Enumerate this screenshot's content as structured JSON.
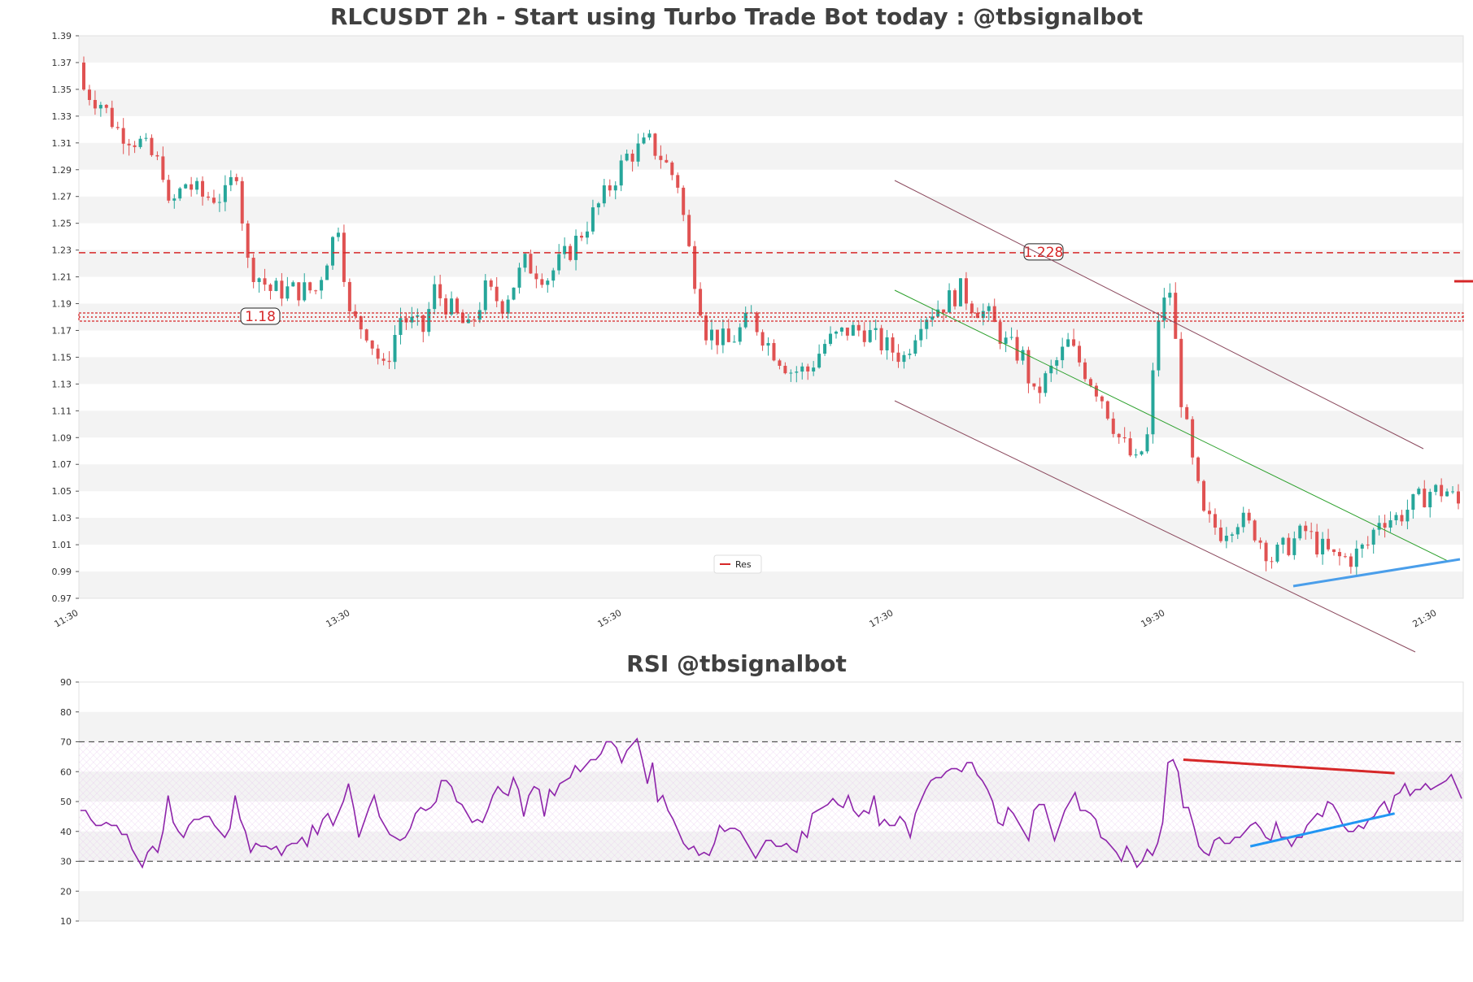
{
  "chart_data": [
    {
      "type": "candlestick",
      "title": "RLCUSDT 2h - Start using Turbo Trade Bot today : @tbsignalbot",
      "ylim": [
        0.97,
        1.39
      ],
      "yticks": [
        "0.97",
        "0.99",
        "1.01",
        "1.03",
        "1.05",
        "1.07",
        "1.09",
        "1.11",
        "1.13",
        "1.15",
        "1.17",
        "1.19",
        "1.21",
        "1.23",
        "1.25",
        "1.27",
        "1.29",
        "1.31",
        "1.33",
        "1.35",
        "1.37",
        "1.39"
      ],
      "xticks": [
        "11:30",
        "13:30",
        "15:30",
        "17:30",
        "19:30",
        "21:30"
      ],
      "legend": [
        "Res"
      ],
      "legend_position": "bottom-center",
      "grid": "horizontal bands",
      "levels": [
        {
          "value": 1.228,
          "label": "1.228",
          "style": "dashed",
          "color": "#d62728"
        },
        {
          "value": 1.18,
          "label": "1.18",
          "style": "hatched band",
          "color": "#d62728"
        }
      ],
      "close_path": [
        [
          0,
          1.35
        ],
        [
          3,
          1.34
        ],
        [
          6,
          1.32
        ],
        [
          10,
          1.31
        ],
        [
          14,
          1.29
        ],
        [
          15,
          1.26
        ],
        [
          18,
          1.28
        ],
        [
          21,
          1.27
        ],
        [
          25,
          1.27
        ],
        [
          27,
          1.29
        ],
        [
          29,
          1.22
        ],
        [
          33,
          1.2
        ],
        [
          37,
          1.2
        ],
        [
          41,
          1.2
        ],
        [
          45,
          1.25
        ],
        [
          47,
          1.18
        ],
        [
          50,
          1.17
        ],
        [
          53,
          1.14
        ],
        [
          56,
          1.18
        ],
        [
          60,
          1.17
        ],
        [
          62,
          1.2
        ],
        [
          64,
          1.19
        ],
        [
          68,
          1.17
        ],
        [
          71,
          1.2
        ],
        [
          74,
          1.19
        ],
        [
          78,
          1.22
        ],
        [
          82,
          1.21
        ],
        [
          86,
          1.23
        ],
        [
          89,
          1.25
        ],
        [
          92,
          1.27
        ],
        [
          96,
          1.3
        ],
        [
          100,
          1.31
        ],
        [
          102,
          1.3
        ],
        [
          105,
          1.28
        ],
        [
          107,
          1.23
        ],
        [
          110,
          1.17
        ],
        [
          114,
          1.16
        ],
        [
          118,
          1.18
        ],
        [
          121,
          1.16
        ],
        [
          125,
          1.14
        ],
        [
          128,
          1.14
        ],
        [
          131,
          1.16
        ],
        [
          135,
          1.17
        ],
        [
          138,
          1.17
        ],
        [
          141,
          1.16
        ],
        [
          145,
          1.15
        ],
        [
          148,
          1.18
        ],
        [
          152,
          1.19
        ],
        [
          155,
          1.2
        ],
        [
          157,
          1.19
        ],
        [
          160,
          1.18
        ],
        [
          163,
          1.16
        ],
        [
          166,
          1.15
        ],
        [
          168,
          1.12
        ],
        [
          171,
          1.14
        ],
        [
          174,
          1.16
        ],
        [
          177,
          1.14
        ],
        [
          180,
          1.12
        ],
        [
          183,
          1.09
        ],
        [
          186,
          1.07
        ],
        [
          188,
          1.09
        ],
        [
          190,
          1.18
        ],
        [
          192,
          1.2
        ],
        [
          194,
          1.12
        ],
        [
          196,
          1.07
        ],
        [
          198,
          1.03
        ],
        [
          201,
          1.02
        ],
        [
          204,
          1.03
        ],
        [
          207,
          1.02
        ],
        [
          210,
          1.0
        ],
        [
          213,
          1.01
        ],
        [
          216,
          1.02
        ],
        [
          218,
          1.01
        ],
        [
          221,
          1.0
        ],
        [
          224,
          1.0
        ],
        [
          227,
          1.01
        ],
        [
          229,
          1.03
        ],
        [
          232,
          1.03
        ],
        [
          235,
          1.04
        ],
        [
          238,
          1.05
        ],
        [
          241,
          1.05
        ],
        [
          243,
          1.04
        ]
      ],
      "candle_count": 244
    },
    {
      "type": "line",
      "title": "RSI @tbsignalbot",
      "ylim": [
        10,
        90
      ],
      "yticks": [
        "10",
        "20",
        "30",
        "40",
        "50",
        "60",
        "70",
        "80",
        "90"
      ],
      "levels": [
        30,
        70
      ],
      "series": [
        {
          "values": [
            47,
            47,
            44,
            42,
            42,
            43,
            42,
            42,
            39,
            39,
            34,
            31,
            28,
            33,
            35,
            33,
            40,
            52,
            43,
            40,
            38,
            42,
            44,
            44,
            45,
            45,
            42,
            40,
            38,
            41,
            52,
            44,
            40,
            33,
            36,
            35,
            35,
            34,
            35,
            32,
            35,
            36,
            36,
            38,
            35,
            42,
            39,
            44,
            46,
            42,
            46,
            50,
            56,
            48,
            38,
            43,
            48,
            52,
            45,
            42,
            39,
            38,
            37,
            38,
            41,
            46,
            48,
            47,
            48,
            50,
            57,
            57,
            55,
            50,
            49,
            46,
            43,
            44,
            43,
            47,
            52,
            55,
            53,
            52,
            58,
            54,
            45,
            52,
            55,
            54,
            45,
            54,
            52,
            56,
            57,
            58,
            62,
            60,
            62,
            64,
            64,
            66,
            70,
            70,
            68,
            63,
            67,
            69,
            71,
            64,
            56,
            63,
            50,
            52,
            47,
            44,
            40,
            36,
            34,
            35,
            32,
            33,
            32,
            36,
            42,
            40,
            41,
            41,
            40,
            37,
            34,
            31,
            34,
            37,
            37,
            35,
            35,
            36,
            34,
            33,
            40,
            38,
            46,
            47,
            48,
            49,
            51,
            49,
            48,
            52,
            47,
            45,
            47,
            46,
            52,
            42,
            44,
            42,
            42,
            45,
            43,
            38,
            46,
            50,
            54,
            57,
            58,
            58,
            60,
            61,
            61,
            60,
            63,
            63,
            59,
            57,
            54,
            50,
            43,
            42,
            48,
            46,
            43,
            40,
            37,
            47,
            49,
            49,
            43,
            37,
            42,
            47,
            50,
            53,
            47,
            47,
            46,
            44,
            38,
            37,
            35,
            33,
            30,
            35,
            32,
            28,
            30,
            34,
            32,
            36,
            43,
            63,
            64,
            60,
            48,
            48,
            42,
            35,
            33,
            32,
            37,
            38,
            36,
            36,
            38,
            38,
            40,
            42,
            43,
            41,
            38,
            37,
            43,
            38,
            38,
            35,
            38,
            38,
            42,
            44,
            46,
            45,
            50,
            49,
            46,
            42,
            40,
            40,
            42,
            41,
            44,
            45,
            48,
            50,
            46,
            52,
            53,
            56,
            52,
            54,
            54,
            56,
            54,
            55,
            56,
            57,
            59,
            55,
            51
          ]
        }
      ],
      "trendlines": [
        {
          "color": "#d62728",
          "from": [
            214,
            64
          ],
          "to": [
            255,
            59.5
          ]
        },
        {
          "color": "#2196f3",
          "from": [
            227,
            35
          ],
          "to": [
            255,
            46
          ]
        }
      ]
    }
  ]
}
